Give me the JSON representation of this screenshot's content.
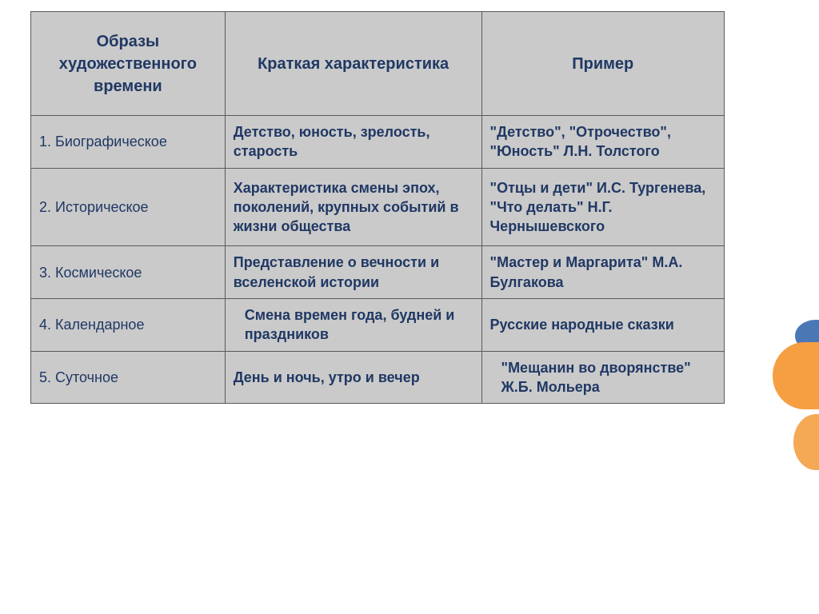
{
  "table": {
    "columns": [
      "Образы художественного времени",
      "Краткая характеристика",
      "Пример"
    ],
    "rows": [
      {
        "label": "1. Биографическое",
        "desc": "Детство, юность, зрелость, старость",
        "example": "\"Детство\", \"Отрочество\", \"Юность\" Л.Н. Толстого"
      },
      {
        "label": "2. Историческое",
        "desc": "Характеристика смены эпох, поколений, крупных событий в жизни общества",
        "example": "\"Отцы и дети\" И.С. Тургенева, \"Что делать\" Н.Г. Чернышевского"
      },
      {
        "label": "3. Космическое",
        "desc": "Представление о вечности и вселенской истории",
        "example": "\"Мастер и Маргарита\" М.А. Булгакова"
      },
      {
        "label": "4. Календарное",
        "desc": "Смена времен года, будней и праздников",
        "example": "Русские народные сказки"
      },
      {
        "label": "5. Суточное",
        "desc": "День и ночь, утро и вечер",
        "example": "\"Мещанин во дворянстве\" Ж.Б. Мольера"
      }
    ],
    "col_widths_pct": [
      28,
      37,
      35
    ],
    "header_bg": "#cacaca",
    "cell_bg": "#cacaca",
    "text_color": "#203864",
    "border_color": "#5a5a5a",
    "header_fontsize": 20,
    "body_fontsize": 18
  },
  "decoration": {
    "orange_color": "#f59e42",
    "orange2_color": "#f5a955",
    "blue_color": "#4a78b5"
  }
}
